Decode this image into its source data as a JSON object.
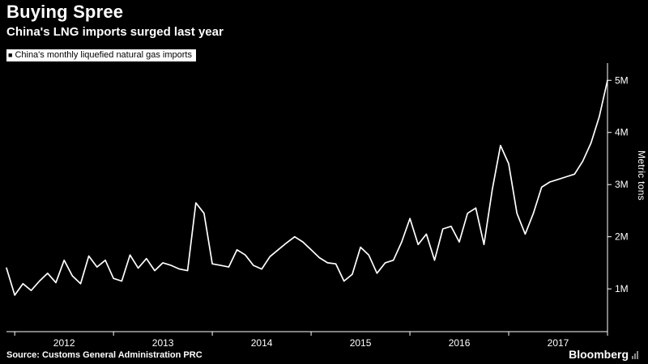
{
  "header": {
    "title": "Buying Spree",
    "subtitle": "China's LNG imports surged last year"
  },
  "legend": {
    "marker": "■",
    "label": "China's monthly liquefied natural gas imports"
  },
  "footer": {
    "source": "Source: Customs General Administration PRC",
    "brand": "Bloomberg"
  },
  "colors": {
    "background": "#000000",
    "line": "#ffffff",
    "axis": "#ffffff",
    "text": "#ffffff",
    "legend_bg": "#ffffff",
    "legend_text": "#000000"
  },
  "chart_data": {
    "type": "line",
    "title": "Buying Spree",
    "subtitle": "China's LNG imports surged last year",
    "series_name": "China's monthly liquefied natural gas imports",
    "unit": "million metric tons",
    "ylabel": "Metric tons",
    "grid": false,
    "legend_position": "top-left",
    "axis_side": "right",
    "ylim": [
      0.18,
      5.33
    ],
    "yticks": {
      "values": [
        1,
        2,
        3,
        4,
        5
      ],
      "labels": [
        "1M",
        "2M",
        "3M",
        "4M",
        "5M"
      ]
    },
    "xticks": [
      "2012",
      "2013",
      "2014",
      "2015",
      "2016",
      "2017"
    ],
    "x": [
      "2011-12",
      "2012-01",
      "2012-02",
      "2012-03",
      "2012-04",
      "2012-05",
      "2012-06",
      "2012-07",
      "2012-08",
      "2012-09",
      "2012-10",
      "2012-11",
      "2012-12",
      "2013-01",
      "2013-02",
      "2013-03",
      "2013-04",
      "2013-05",
      "2013-06",
      "2013-07",
      "2013-08",
      "2013-09",
      "2013-10",
      "2013-11",
      "2013-12",
      "2014-01",
      "2014-02",
      "2014-03",
      "2014-04",
      "2014-05",
      "2014-06",
      "2014-07",
      "2014-08",
      "2014-09",
      "2014-10",
      "2014-11",
      "2014-12",
      "2015-01",
      "2015-02",
      "2015-03",
      "2015-04",
      "2015-05",
      "2015-06",
      "2015-07",
      "2015-08",
      "2015-09",
      "2015-10",
      "2015-11",
      "2015-12",
      "2016-01",
      "2016-02",
      "2016-03",
      "2016-04",
      "2016-05",
      "2016-06",
      "2016-07",
      "2016-08",
      "2016-09",
      "2016-10",
      "2016-11",
      "2016-12",
      "2017-01",
      "2017-02",
      "2017-03",
      "2017-04",
      "2017-05",
      "2017-06",
      "2017-07",
      "2017-08",
      "2017-09",
      "2017-10",
      "2017-11",
      "2017-12",
      "2018-01"
    ],
    "values": [
      1.4,
      0.88,
      1.1,
      0.97,
      1.15,
      1.3,
      1.12,
      1.55,
      1.25,
      1.1,
      1.63,
      1.42,
      1.55,
      1.2,
      1.15,
      1.65,
      1.4,
      1.58,
      1.35,
      1.5,
      1.45,
      1.38,
      1.35,
      2.65,
      2.45,
      1.48,
      1.45,
      1.42,
      1.75,
      1.65,
      1.45,
      1.38,
      1.62,
      1.75,
      1.88,
      2.0,
      1.9,
      1.75,
      1.6,
      1.5,
      1.48,
      1.15,
      1.28,
      1.8,
      1.65,
      1.3,
      1.5,
      1.55,
      1.9,
      2.35,
      1.85,
      2.05,
      1.55,
      2.15,
      2.2,
      1.9,
      2.45,
      2.55,
      1.85,
      2.9,
      3.75,
      3.4,
      2.45,
      2.05,
      2.45,
      2.95,
      3.05,
      3.1,
      3.15,
      3.2,
      3.45,
      3.8,
      4.3,
      5.0
    ]
  }
}
